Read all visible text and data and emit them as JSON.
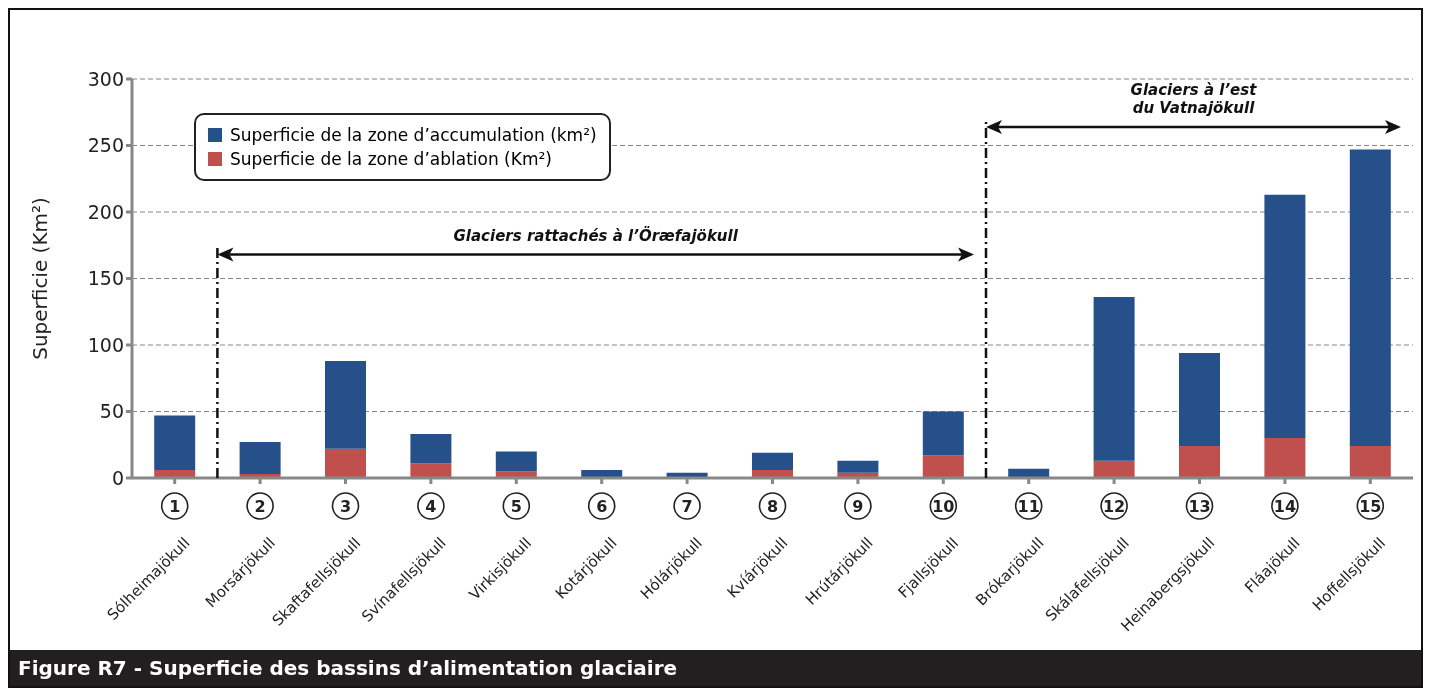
{
  "chart_data": {
    "type": "bar",
    "stacked": true,
    "title": "Figure R7 - Superficie des bassins d’alimentation glaciaire",
    "ylabel": "Superficie (Km²)",
    "categories": [
      "Sólheimajökull",
      "Morsárjökull",
      "Skaftafellsjökull",
      "Svínafellsjökull",
      "Virkisjökull",
      "Kotárjökull",
      "Hólárjökull",
      "Kvíárjökull",
      "Hrútárjökull",
      "Fjallsjökull",
      "Brókarjökull",
      "Skálafellsjökull",
      "Heinabergsjökull",
      "Fláajökull",
      "Hoffellsjökull"
    ],
    "series": [
      {
        "name": "Superficie de la zone d’ablation (Km²)",
        "color": "#c0504d",
        "values": [
          6,
          3,
          22,
          11,
          5,
          null,
          null,
          6,
          4,
          17,
          null,
          13,
          24,
          30,
          24
        ]
      },
      {
        "name": "Superficie de la zone d’accumulation (km²)",
        "color": "#25508a",
        "values": [
          41,
          24,
          66,
          22,
          15,
          6,
          4,
          13,
          9,
          33,
          7,
          123,
          70,
          183,
          223
        ]
      }
    ],
    "ylim": [
      0,
      300
    ],
    "yticks": [
      0,
      50,
      100,
      150,
      200,
      250,
      300
    ],
    "grid": "y",
    "legend": "top left",
    "annotations": [
      "Glaciers rattachés à l’Öræfajökull",
      "Glaciers à l’est du Vatnajökull",
      "1",
      "2",
      "3",
      "4",
      "5",
      "6",
      "7",
      "8",
      "9",
      "10",
      "11",
      "12",
      "13",
      "14",
      "15"
    ]
  }
}
